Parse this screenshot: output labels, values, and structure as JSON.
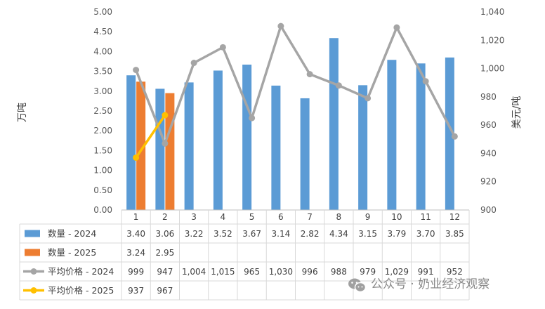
{
  "chart_data": {
    "type": "bar",
    "categories": [
      "1",
      "2",
      "3",
      "4",
      "5",
      "6",
      "7",
      "8",
      "9",
      "10",
      "11",
      "12"
    ],
    "left_axis": {
      "label": "万吨",
      "range": [
        0,
        5
      ],
      "ticks": [
        "0.00",
        "0.50",
        "1.00",
        "1.50",
        "2.00",
        "2.50",
        "3.00",
        "3.50",
        "4.00",
        "4.50",
        "5.00"
      ]
    },
    "right_axis": {
      "label": "美元/吨",
      "range": [
        900,
        1040
      ],
      "ticks": [
        "900",
        "920",
        "940",
        "960",
        "980",
        "1,000",
        "1,020",
        "1,040"
      ]
    },
    "series": [
      {
        "name": "数量 - 2024",
        "kind": "bar",
        "axis": "left",
        "color": "#5B9BD5",
        "values": [
          3.4,
          3.06,
          3.22,
          3.52,
          3.67,
          3.14,
          2.82,
          4.34,
          3.15,
          3.79,
          3.7,
          3.85
        ],
        "labels": [
          "3.40",
          "3.06",
          "3.22",
          "3.52",
          "3.67",
          "3.14",
          "2.82",
          "4.34",
          "3.15",
          "3.79",
          "3.70",
          "3.85"
        ]
      },
      {
        "name": "数量 - 2025",
        "kind": "bar",
        "axis": "left",
        "color": "#ED7D31",
        "values": [
          3.24,
          2.95,
          null,
          null,
          null,
          null,
          null,
          null,
          null,
          null,
          null,
          null
        ],
        "labels": [
          "3.24",
          "2.95",
          "",
          "",
          "",
          "",
          "",
          "",
          "",
          "",
          "",
          ""
        ]
      },
      {
        "name": "平均价格 - 2024",
        "kind": "line",
        "axis": "right",
        "color": "#A5A5A5",
        "values": [
          999,
          947,
          1004,
          1015,
          965,
          1030,
          996,
          988,
          979,
          1029,
          991,
          952
        ],
        "labels": [
          "999",
          "947",
          "1,004",
          "1,015",
          "965",
          "1,030",
          "996",
          "988",
          "979",
          "1,029",
          "991",
          "952"
        ]
      },
      {
        "name": "平均价格 - 2025",
        "kind": "line",
        "axis": "right",
        "color": "#FFC000",
        "values": [
          937,
          967,
          null,
          null,
          null,
          null,
          null,
          null,
          null,
          null,
          null,
          null
        ],
        "labels": [
          "937",
          "967",
          "",
          "",
          "",
          "",
          "",
          "",
          "",
          "",
          "",
          ""
        ]
      }
    ],
    "grid": false,
    "legend": "data-table"
  },
  "watermark": {
    "icon": "wechat-icon",
    "text": "公众号 · 奶业经济观察"
  }
}
